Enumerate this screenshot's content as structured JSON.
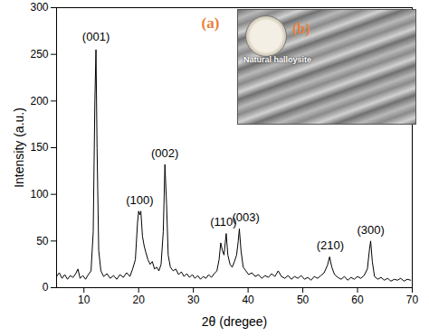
{
  "chart_data": {
    "type": "line",
    "x_label": "2θ (dregee)",
    "y_label": "Intensity (a.u.)",
    "color": "#000000",
    "xlim": [
      5,
      70
    ],
    "xticks": [
      10,
      20,
      30,
      40,
      50,
      60,
      70
    ],
    "ylim": [
      0,
      300
    ],
    "yticks": [
      0,
      50,
      100,
      150,
      200,
      250,
      300
    ],
    "x": [
      5,
      5.5,
      6,
      6.5,
      7,
      7.5,
      8,
      8.5,
      8.9,
      9.3,
      9.8,
      10.3,
      10.8,
      11.3,
      11.7,
      12.0,
      12.2,
      12.4,
      12.7,
      13.1,
      13.6,
      14.2,
      14.8,
      15.4,
      16,
      16.6,
      17.2,
      17.8,
      18.4,
      18.9,
      19.4,
      19.8,
      20.0,
      20.2,
      20.4,
      20.7,
      21.0,
      21.3,
      21.7,
      22.1,
      22.5,
      22.9,
      23.3,
      23.7,
      24.1,
      24.5,
      24.8,
      25.1,
      25.4,
      25.8,
      26.3,
      26.8,
      27.3,
      27.8,
      28.3,
      28.8,
      29.3,
      29.8,
      30.3,
      30.8,
      31.3,
      31.8,
      32.3,
      32.8,
      33.3,
      33.8,
      34.3,
      34.7,
      35.0,
      35.3,
      35.6,
      36.0,
      36.3,
      36.7,
      37.1,
      37.5,
      37.9,
      38.2,
      38.4,
      38.7,
      39.1,
      39.6,
      40.1,
      40.7,
      41.3,
      41.9,
      42.5,
      43.1,
      43.7,
      44.3,
      44.9,
      45.5,
      46.1,
      46.7,
      47.3,
      47.9,
      48.5,
      49.1,
      49.7,
      50.3,
      50.9,
      51.5,
      52.1,
      52.7,
      53.3,
      53.9,
      54.5,
      54.9,
      55.3,
      55.8,
      56.4,
      57,
      57.6,
      58.2,
      58.8,
      59.4,
      60,
      60.6,
      61.2,
      61.8,
      62.2,
      62.4,
      62.7,
      63.1,
      63.7,
      64.3,
      64.9,
      65.5,
      66.1,
      66.7,
      67.3,
      67.9,
      68.5,
      69.1,
      69.7
    ],
    "values": [
      12,
      16,
      10,
      14,
      9,
      13,
      11,
      15,
      20,
      10,
      13,
      9,
      14,
      18,
      60,
      200,
      255,
      150,
      40,
      18,
      12,
      15,
      10,
      13,
      9,
      14,
      11,
      16,
      12,
      20,
      30,
      70,
      82,
      78,
      82,
      55,
      45,
      38,
      30,
      25,
      28,
      20,
      22,
      18,
      25,
      60,
      132,
      90,
      35,
      22,
      18,
      20,
      14,
      17,
      12,
      15,
      11,
      14,
      10,
      13,
      9,
      12,
      10,
      14,
      11,
      15,
      18,
      30,
      48,
      40,
      35,
      58,
      35,
      25,
      22,
      28,
      35,
      50,
      63,
      40,
      22,
      18,
      14,
      16,
      12,
      14,
      10,
      13,
      11,
      15,
      12,
      18,
      12,
      10,
      13,
      9,
      12,
      10,
      13,
      9,
      11,
      8,
      12,
      10,
      13,
      16,
      24,
      33,
      22,
      14,
      11,
      9,
      12,
      8,
      11,
      9,
      12,
      10,
      13,
      20,
      42,
      50,
      28,
      12,
      9,
      11,
      8,
      10,
      7,
      9,
      8,
      10,
      7,
      9,
      8
    ],
    "annotations": [
      {
        "text": "(001)",
        "x": 12.2,
        "y": 265
      },
      {
        "text": "(100)",
        "x": 20.2,
        "y": 90
      },
      {
        "text": "(002)",
        "x": 24.8,
        "y": 140
      },
      {
        "text": "(110)",
        "x": 35.5,
        "y": 66
      },
      {
        "text": "(003)",
        "x": 39.6,
        "y": 71
      },
      {
        "text": "(210)",
        "x": 55.0,
        "y": 41
      },
      {
        "text": "(300)",
        "x": 62.4,
        "y": 58
      }
    ],
    "panel_label": {
      "text": "(a)",
      "color": "#e8803a"
    },
    "inset": {
      "label": "(b)",
      "text": "Natural halloysite"
    }
  }
}
